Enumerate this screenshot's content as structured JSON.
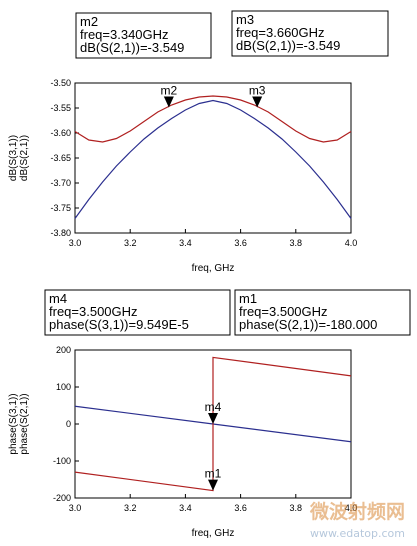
{
  "chart_data": [
    {
      "type": "line",
      "xlabel": "freq, GHz",
      "ylabel_lines": [
        {
          "text": "dB(S(3,1))",
          "color": "#2b2f8f"
        },
        {
          "text": "dB(S(2,1))",
          "color": "#b02020"
        }
      ],
      "xlim": [
        3.0,
        4.0
      ],
      "ylim": [
        -3.8,
        -3.5
      ],
      "xticks": [
        "3.0",
        "3.2",
        "3.4",
        "3.6",
        "3.8",
        "4.0"
      ],
      "yticks": [
        "-3.50",
        "-3.55",
        "-3.60",
        "-3.65",
        "-3.70",
        "-3.75",
        "-3.80"
      ],
      "grid": false,
      "series": [
        {
          "name": "dB(S(3,1))",
          "color": "#2b2f8f",
          "x": [
            3.0,
            3.05,
            3.1,
            3.15,
            3.2,
            3.25,
            3.3,
            3.35,
            3.4,
            3.45,
            3.5,
            3.55,
            3.6,
            3.65,
            3.7,
            3.75,
            3.8,
            3.85,
            3.9,
            3.95,
            4.0
          ],
          "y": [
            -3.771,
            -3.733,
            -3.698,
            -3.666,
            -3.638,
            -3.612,
            -3.59,
            -3.571,
            -3.554,
            -3.541,
            -3.535,
            -3.541,
            -3.554,
            -3.571,
            -3.59,
            -3.612,
            -3.638,
            -3.666,
            -3.698,
            -3.733,
            -3.771
          ]
        },
        {
          "name": "dB(S(2,1))",
          "color": "#b02020",
          "x": [
            3.0,
            3.05,
            3.1,
            3.15,
            3.2,
            3.25,
            3.3,
            3.35,
            3.4,
            3.45,
            3.5,
            3.55,
            3.6,
            3.65,
            3.7,
            3.75,
            3.8,
            3.85,
            3.9,
            3.95,
            4.0
          ],
          "y": [
            -3.597,
            -3.614,
            -3.618,
            -3.611,
            -3.596,
            -3.577,
            -3.558,
            -3.544,
            -3.534,
            -3.528,
            -3.526,
            -3.528,
            -3.534,
            -3.544,
            -3.558,
            -3.577,
            -3.596,
            -3.611,
            -3.618,
            -3.614,
            -3.597
          ]
        }
      ],
      "markers": [
        {
          "id": "m2",
          "x": 3.34,
          "y": -3.549,
          "lines": [
            "m2",
            "freq=3.340GHz",
            "dB(S(2,1))=-3.549"
          ]
        },
        {
          "id": "m3",
          "x": 3.66,
          "y": -3.549,
          "lines": [
            "m3",
            "freq=3.660GHz",
            "dB(S(2,1))=-3.549"
          ]
        }
      ]
    },
    {
      "type": "line",
      "xlabel": "freq, GHz",
      "ylabel_lines": [
        {
          "text": "phase(S(3,1))",
          "color": "#2b2f8f"
        },
        {
          "text": "phase(S(2,1))",
          "color": "#b02020"
        }
      ],
      "xlim": [
        3.0,
        4.0
      ],
      "ylim": [
        -200,
        200
      ],
      "xticks": [
        "3.0",
        "3.2",
        "3.4",
        "3.6",
        "3.8",
        "4.0"
      ],
      "yticks": [
        "200",
        "100",
        "0",
        "-100",
        "-200"
      ],
      "grid": false,
      "series": [
        {
          "name": "phase(S(3,1))",
          "color": "#2b2f8f",
          "x": [
            3.0,
            3.5,
            4.0
          ],
          "y": [
            48,
            0,
            -48
          ]
        },
        {
          "name": "phase(S(2,1))",
          "color": "#b02020",
          "x": [
            3.0,
            3.5,
            3.5,
            4.0
          ],
          "y": [
            -130,
            -180,
            180,
            130
          ]
        }
      ],
      "markers": [
        {
          "id": "m4",
          "x": 3.5,
          "y": 0,
          "lines": [
            "m4",
            "freq=3.500GHz",
            "phase(S(3,1))=9.549E-5"
          ]
        },
        {
          "id": "m1",
          "x": 3.5,
          "y": -180,
          "lines": [
            "m1",
            "freq=3.500GHz",
            "phase(S(2,1))=-180.000"
          ]
        }
      ]
    }
  ],
  "watermark": {
    "line1": "微波射频网",
    "line2": "www.edatop.com"
  },
  "colors": {
    "blue": "#2b2f8f",
    "red": "#b02020"
  }
}
